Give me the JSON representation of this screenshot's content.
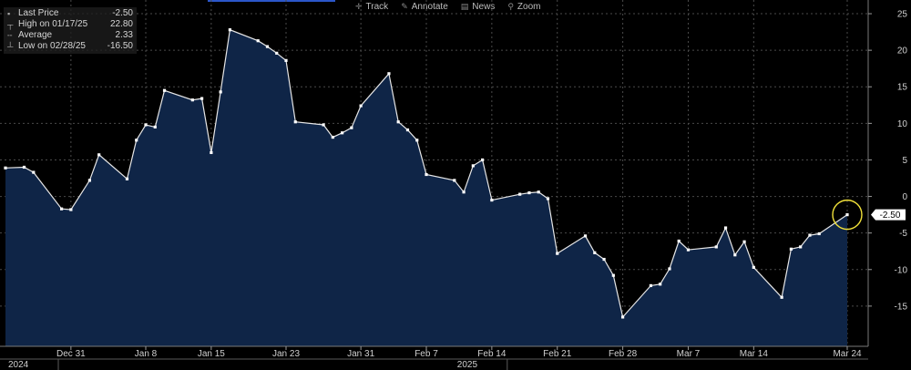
{
  "toolbar": {
    "items": [
      {
        "label": "Track",
        "icon": "crosshair-icon",
        "glyph": "✛"
      },
      {
        "label": "Annotate",
        "icon": "pencil-icon",
        "glyph": "✎"
      },
      {
        "label": "News",
        "icon": "news-icon",
        "glyph": "▤"
      },
      {
        "label": "Zoom",
        "icon": "magnifier-icon",
        "glyph": "⚲"
      }
    ]
  },
  "legend": {
    "rows": [
      {
        "label": "Last Price",
        "value": "-2.50"
      },
      {
        "label": "High on 01/17/25",
        "value": "22.80"
      },
      {
        "label": "Average",
        "value": "2.33"
      },
      {
        "label": "Low on 02/28/25",
        "value": "-16.50"
      }
    ]
  },
  "colors": {
    "background": "#000000",
    "area_fill": "#0f2547",
    "line": "#e6e6e6",
    "grid": "#4a4a4a",
    "highlight_circle": "#f2e23a",
    "last_value_label_bg": "#ffffff",
    "accent_bar": "#2b56c9"
  },
  "chart_data": {
    "type": "area",
    "x": [
      "2024-12-24",
      "2024-12-26",
      "2024-12-27",
      "2024-12-30",
      "2024-12-31",
      "2025-01-02",
      "2025-01-03",
      "2025-01-06",
      "2025-01-07",
      "2025-01-08",
      "2025-01-09",
      "2025-01-10",
      "2025-01-13",
      "2025-01-14",
      "2025-01-15",
      "2025-01-16",
      "2025-01-17",
      "2025-01-20",
      "2025-01-21",
      "2025-01-22",
      "2025-01-23",
      "2025-01-24",
      "2025-01-27",
      "2025-01-28",
      "2025-01-29",
      "2025-01-30",
      "2025-01-31",
      "2025-02-03",
      "2025-02-04",
      "2025-02-05",
      "2025-02-06",
      "2025-02-07",
      "2025-02-10",
      "2025-02-11",
      "2025-02-12",
      "2025-02-13",
      "2025-02-14",
      "2025-02-17",
      "2025-02-18",
      "2025-02-19",
      "2025-02-20",
      "2025-02-21",
      "2025-02-24",
      "2025-02-25",
      "2025-02-26",
      "2025-02-27",
      "2025-02-28",
      "2025-03-03",
      "2025-03-04",
      "2025-03-05",
      "2025-03-06",
      "2025-03-07",
      "2025-03-10",
      "2025-03-11",
      "2025-03-12",
      "2025-03-13",
      "2025-03-14",
      "2025-03-17",
      "2025-03-18",
      "2025-03-19",
      "2025-03-20",
      "2025-03-21",
      "2025-03-24"
    ],
    "values": [
      3.9,
      4.0,
      3.3,
      -1.7,
      -1.8,
      2.2,
      5.7,
      2.4,
      7.7,
      9.8,
      9.5,
      14.5,
      13.2,
      13.4,
      6.0,
      14.3,
      22.8,
      21.3,
      20.5,
      19.6,
      18.6,
      10.2,
      9.8,
      8.1,
      8.7,
      9.4,
      12.4,
      16.8,
      10.2,
      9.1,
      7.7,
      3.0,
      2.2,
      0.6,
      4.2,
      5.0,
      -0.5,
      0.3,
      0.5,
      0.6,
      -0.3,
      -7.8,
      -5.4,
      -7.7,
      -8.6,
      -10.8,
      -16.5,
      -12.2,
      -12.0,
      -9.9,
      -6.1,
      -7.3,
      -6.9,
      -4.3,
      -8.0,
      -6.2,
      -9.7,
      -13.8,
      -7.2,
      -6.9,
      -5.3,
      -5.1,
      -2.5
    ],
    "x_ticks": [
      "Dec 31",
      "Jan 8",
      "Jan 15",
      "Jan 23",
      "Jan 31",
      "Feb 7",
      "Feb 14",
      "Feb 21",
      "Feb 28",
      "Mar 7",
      "Mar 14",
      "Mar 24"
    ],
    "x_tick_dates": [
      "2024-12-31",
      "2025-01-08",
      "2025-01-15",
      "2025-01-23",
      "2025-01-31",
      "2025-02-07",
      "2025-02-14",
      "2025-02-21",
      "2025-02-28",
      "2025-03-07",
      "2025-03-14",
      "2025-03-24"
    ],
    "year_labels": [
      {
        "label": "2024",
        "date": "2024-12-24"
      },
      {
        "label": "2025",
        "date": "2025-02-10"
      }
    ],
    "y_ticks": [
      25,
      20,
      15,
      10,
      5,
      0,
      -5,
      -10,
      -15
    ],
    "ylim": [
      -20.5,
      26.5
    ],
    "grid": true,
    "last_value_label": "-2.50",
    "highlight_last_point": true
  }
}
